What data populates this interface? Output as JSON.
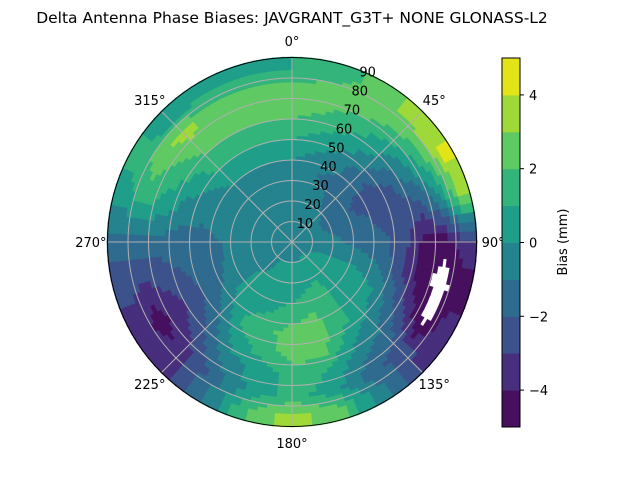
{
  "chart_data": {
    "type": "heatmap",
    "subtype": "polar-contour",
    "title": "Delta Antenna Phase Biases: JAVGRANT_G3T+   NONE GLONASS-L2",
    "azimuth_zero": "top",
    "azimuth_direction": "clockwise",
    "azimuth_ticks": [
      "0°",
      "45°",
      "90°",
      "135°",
      "180°",
      "225°",
      "270°",
      "315°"
    ],
    "radial_ticks": [
      "10",
      "20",
      "30",
      "40",
      "50",
      "60",
      "70",
      "80",
      "90"
    ],
    "radial_range": [
      0,
      90
    ],
    "grid": true,
    "colorbar": {
      "label": "Bias (mm)",
      "levels": [
        -5,
        -4,
        -3,
        -2,
        -1,
        0,
        1,
        2,
        3,
        4,
        5
      ],
      "ticks": [
        "4",
        "2",
        "0",
        "−2",
        "−4"
      ],
      "tick_values": [
        4,
        2,
        0,
        -2,
        -4
      ],
      "colors": [
        "#46105f",
        "#472f7d",
        "#3b528b",
        "#2f6b8e",
        "#25838e",
        "#1f9e89",
        "#33b47a",
        "#5fc963",
        "#9fd939",
        "#e2e417"
      ],
      "colormap": "viridis"
    },
    "azimuths_deg": [
      0,
      15,
      30,
      45,
      60,
      75,
      90,
      105,
      120,
      135,
      150,
      165,
      180,
      195,
      210,
      225,
      240,
      255,
      270,
      285,
      300,
      315,
      330,
      345
    ],
    "radii": [
      5,
      15,
      25,
      35,
      45,
      55,
      65,
      75,
      85
    ],
    "values_mm": [
      [
        -0.5,
        -0.5,
        -0.5,
        -0.5,
        0.5,
        1.5,
        2.5,
        2.5,
        1.0
      ],
      [
        -0.5,
        -0.5,
        -0.5,
        -0.8,
        0,
        1,
        2,
        2.5,
        1.5
      ],
      [
        -0.5,
        -0.6,
        -0.8,
        -1.2,
        -0.5,
        0.5,
        1.5,
        2.5,
        2.5
      ],
      [
        -0.5,
        -0.8,
        -1.2,
        -1.5,
        -1.5,
        -0.5,
        0.5,
        2.2,
        3.5
      ],
      [
        -0.5,
        -1,
        -1.5,
        -2.2,
        -2.5,
        -2,
        -0.5,
        1.5,
        4.2
      ],
      [
        -0.5,
        -0.9,
        -1.3,
        -1.8,
        -2.2,
        -2.5,
        -2.5,
        -0.5,
        3
      ],
      [
        -0.5,
        -0.5,
        -1,
        -1.5,
        -1.8,
        -2.5,
        -4.5,
        -4.7,
        -3
      ],
      [
        -0.3,
        -0.2,
        -0.3,
        -0.5,
        -1.2,
        -3,
        -4.5,
        -5.5,
        -4.5
      ],
      [
        -0.3,
        0.3,
        0.5,
        0.5,
        0,
        -1.5,
        -3.5,
        -5.5,
        -3.5
      ],
      [
        -0.3,
        0.5,
        0.5,
        0.5,
        0.5,
        -0.5,
        -1.5,
        -2.5,
        -3
      ],
      [
        -0.3,
        0.5,
        1.2,
        1.5,
        1.5,
        0.5,
        -0.5,
        -1.5,
        -0.5
      ],
      [
        -0.4,
        0.5,
        1,
        2,
        2.5,
        2.5,
        1,
        0.5,
        2.5
      ],
      [
        -0.5,
        0.5,
        0.5,
        1.5,
        2.5,
        2.5,
        1.5,
        1.5,
        3.5
      ],
      [
        -0.5,
        0.5,
        0.5,
        1,
        1.8,
        1.5,
        0.5,
        0.5,
        2
      ],
      [
        -0.5,
        0.5,
        0.5,
        0.5,
        1.5,
        0.5,
        -0.5,
        -1.5,
        -1
      ],
      [
        -0.5,
        -0.5,
        0.5,
        0.5,
        -0.5,
        -1.5,
        -2.5,
        -3.5,
        -3.5
      ],
      [
        -0.5,
        -0.5,
        -0.5,
        -0.8,
        -1.5,
        -2.5,
        -3.5,
        -4.5,
        -3.5
      ],
      [
        -0.5,
        -0.5,
        -0.5,
        -1,
        -1.5,
        -2,
        -2.5,
        -3,
        -2.5
      ],
      [
        -0.5,
        -0.5,
        -0.5,
        -1,
        -1.5,
        -1.5,
        -1.5,
        -1.5,
        -1.5
      ],
      [
        -0.5,
        -0.5,
        -0.5,
        -0.7,
        -0.8,
        -0.5,
        0.5,
        1.2,
        0.5
      ],
      [
        -0.5,
        -0.5,
        -0.5,
        -0.5,
        -0.3,
        0.5,
        1.5,
        2.5,
        1.5
      ],
      [
        -0.5,
        -0.5,
        -0.5,
        -0.5,
        0.5,
        1.5,
        2.5,
        3.5,
        0
      ],
      [
        -0.5,
        -0.5,
        -0.5,
        -0.5,
        0.5,
        1.5,
        2.5,
        2.5,
        1
      ],
      [
        -0.5,
        -0.5,
        -0.5,
        -0.5,
        0.5,
        1.5,
        2.5,
        2.5,
        1
      ]
    ]
  }
}
